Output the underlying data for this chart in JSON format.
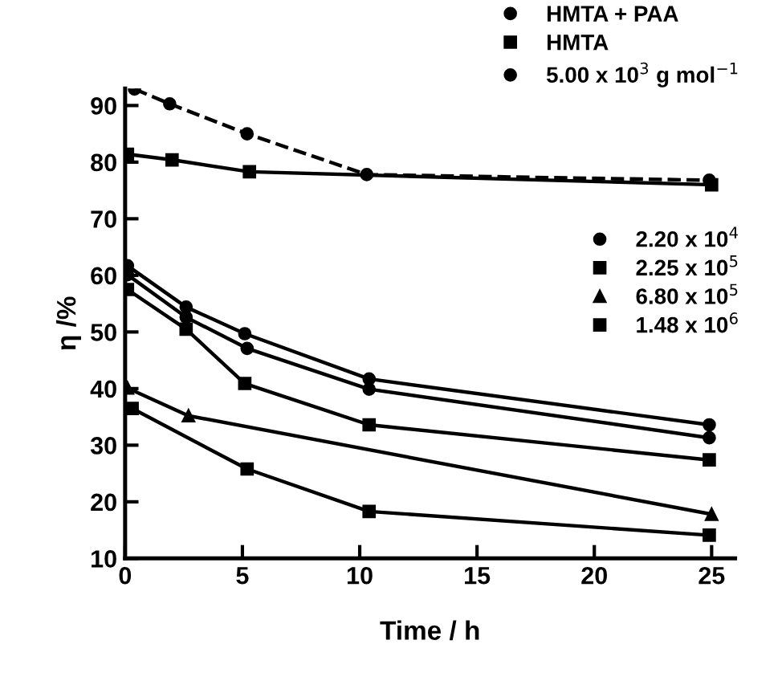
{
  "chart_data": {
    "type": "line",
    "xlabel": "Time / h",
    "ylabel": "η /%",
    "xlim": [
      0,
      26
    ],
    "ylim": [
      10,
      93
    ],
    "xticks": [
      0,
      5,
      10,
      15,
      20,
      25
    ],
    "yticks": [
      10,
      20,
      30,
      40,
      50,
      60,
      70,
      80,
      90
    ],
    "grid": false,
    "legend": "top right",
    "series": [
      {
        "name": "HMTA + PAA",
        "color": "#000000",
        "marker": "circle",
        "line_style": "dashed",
        "x": [
          0.4,
          1.9,
          5.2,
          10.3,
          24.9
        ],
        "values": [
          92.9,
          90.3,
          85,
          77.8,
          76.8
        ]
      },
      {
        "name": "HMTA",
        "color": "#000000",
        "marker": "square",
        "line_style": "solid",
        "x": [
          0.1,
          2.0,
          5.3,
          25
        ],
        "values": [
          81.4,
          80.4,
          78.3,
          76
        ]
      },
      {
        "name": "5.00 x 10$^{3}$ g mol$^{−1}$",
        "color": "#000000",
        "marker": "circle",
        "line_style": "solid",
        "x": [
          0.1,
          2.6,
          5.1,
          10.4,
          24.9
        ],
        "values": [
          61.7,
          54.4,
          49.7,
          41.7,
          33.6
        ]
      },
      {
        "name": "2.20 x 10$^{4}$",
        "color": "#000000",
        "marker": "circle",
        "line_style": "solid",
        "x": [
          0.1,
          2.6,
          5.2,
          10.4,
          24.9
        ],
        "values": [
          60.1,
          52.6,
          47.1,
          39.9,
          31.3
        ]
      },
      {
        "name": "2.25 x 10$^{5}$",
        "color": "#000000",
        "marker": "square",
        "line_style": "solid",
        "x": [
          0.1,
          2.6,
          5.1,
          10.4,
          24.9
        ],
        "values": [
          57.5,
          50.5,
          40.9,
          33.6,
          27.4
        ]
      },
      {
        "name": "6.80 x 10$^{5}$",
        "color": "#000000",
        "marker": "triangle",
        "line_style": "solid",
        "x": [
          0.1,
          2.7,
          25
        ],
        "values": [
          40.1,
          35.2,
          17.8
        ]
      },
      {
        "name": "1.48 x 10$^{6}$",
        "color": "#000000",
        "marker": "square",
        "line_style": "solid",
        "x": [
          0.3,
          5.2,
          10.4,
          24.9
        ],
        "values": [
          36.5,
          25.8,
          18.3,
          14.1
        ]
      }
    ]
  }
}
